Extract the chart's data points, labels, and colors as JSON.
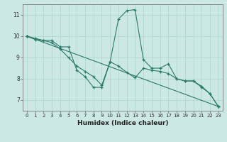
{
  "title": "",
  "xlabel": "Humidex (Indice chaleur)",
  "bg_color": "#cce8e4",
  "grid_color": "#aad4cc",
  "line_color": "#2a7a68",
  "xlim": [
    -0.5,
    23.5
  ],
  "ylim": [
    6.5,
    11.5
  ],
  "xticks": [
    0,
    1,
    2,
    3,
    4,
    5,
    6,
    7,
    8,
    9,
    10,
    11,
    12,
    13,
    14,
    15,
    16,
    17,
    18,
    19,
    20,
    21,
    22,
    23
  ],
  "yticks": [
    7,
    8,
    9,
    10,
    11
  ],
  "line1_x": [
    0,
    1,
    2,
    3,
    4,
    5,
    6,
    7,
    8,
    9,
    10,
    11,
    12,
    13,
    14,
    15,
    16,
    17,
    18,
    19,
    20,
    21,
    22,
    23
  ],
  "line1_y": [
    10.0,
    9.9,
    9.8,
    9.8,
    9.5,
    9.5,
    8.4,
    8.1,
    7.6,
    7.6,
    8.8,
    10.8,
    11.2,
    11.25,
    8.9,
    8.5,
    8.5,
    8.7,
    8.0,
    7.9,
    7.9,
    7.6,
    7.3,
    6.7
  ],
  "line2_x": [
    0,
    1,
    2,
    3,
    4,
    5,
    6,
    7,
    8,
    9,
    10,
    11,
    12,
    13,
    14,
    15,
    16,
    17,
    18,
    19,
    20,
    21,
    22,
    23
  ],
  "line2_y": [
    10.0,
    9.85,
    9.8,
    9.7,
    9.4,
    9.0,
    8.6,
    8.35,
    8.1,
    7.7,
    8.8,
    8.6,
    8.3,
    8.05,
    8.5,
    8.4,
    8.35,
    8.25,
    8.0,
    7.9,
    7.9,
    7.65,
    7.3,
    6.7
  ],
  "line3_x": [
    0,
    23
  ],
  "line3_y": [
    10.0,
    6.7
  ],
  "xlabel_fontsize": 6.5,
  "tick_fontsize": 5.0,
  "ytick_fontsize": 5.5,
  "linewidth": 0.8,
  "markersize": 3.5
}
